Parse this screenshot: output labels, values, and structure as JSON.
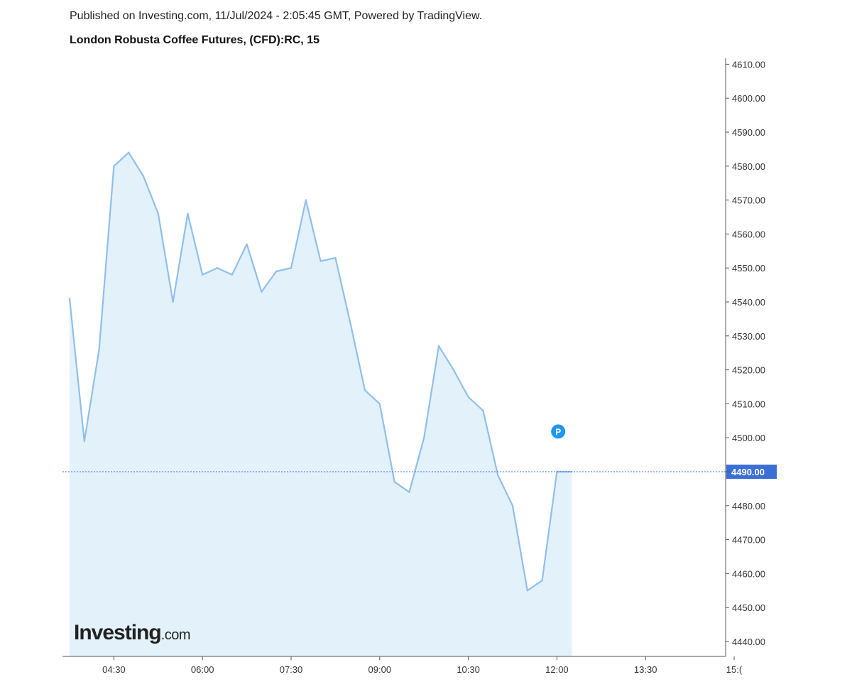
{
  "header": {
    "published": "Published on Investing.com, 11/Jul/2024 - 2:05:45 GMT, Powered by TradingView.",
    "title": "London Robusta Coffee Futures, (CFD):RC, 15"
  },
  "logo": {
    "main": "Investing",
    "suffix": ".com"
  },
  "chart_data": {
    "type": "area",
    "title": "London Robusta Coffee Futures, (CFD):RC, 15",
    "interval_minutes": 15,
    "x": [
      "03:45",
      "04:00",
      "04:15",
      "04:30",
      "04:45",
      "05:00",
      "05:15",
      "05:30",
      "05:45",
      "06:00",
      "06:15",
      "06:30",
      "06:45",
      "07:00",
      "07:15",
      "07:30",
      "07:45",
      "08:00",
      "08:15",
      "08:30",
      "08:45",
      "09:00",
      "09:15",
      "09:30",
      "09:45",
      "10:00",
      "10:15",
      "10:30",
      "10:45",
      "11:00",
      "11:15",
      "11:30",
      "11:45",
      "12:00",
      "12:15"
    ],
    "series": [
      {
        "values": [
          4541,
          4499,
          4526,
          4580,
          4584,
          4577,
          4566,
          4540,
          4566,
          4548,
          4550,
          4548,
          4557,
          4543,
          4549,
          4550,
          4570,
          4552,
          4553,
          4534,
          4514,
          4510,
          4487,
          4484,
          4500,
          4527,
          4520,
          4512,
          4508,
          4489,
          4480,
          4455,
          4458,
          4490,
          4490
        ]
      }
    ],
    "ylim": [
      4435,
      4612
    ],
    "y_ticks": [
      "4440.00",
      "4450.00",
      "4460.00",
      "4470.00",
      "4480.00",
      "4490.00",
      "4500.00",
      "4510.00",
      "4520.00",
      "4530.00",
      "4540.00",
      "4550.00",
      "4560.00",
      "4570.00",
      "4580.00",
      "4590.00",
      "4600.00",
      "4610.00"
    ],
    "x_ticks": [
      "04:30",
      "06:00",
      "07:30",
      "09:00",
      "10:30",
      "12:00",
      "13:30",
      "15:("
    ],
    "current_price": 4490,
    "current_price_label": "4490.00",
    "marker": {
      "label": "P",
      "x": "12:15",
      "y": 4501
    },
    "colors": {
      "line": "#8fbfec",
      "fill": "#e3f1fb",
      "price_line": "#3b6fd4",
      "price_label_bg": "#3b6fd4",
      "marker": "#2196f3",
      "axis": "#555555"
    },
    "grid": false,
    "legend": "none"
  }
}
